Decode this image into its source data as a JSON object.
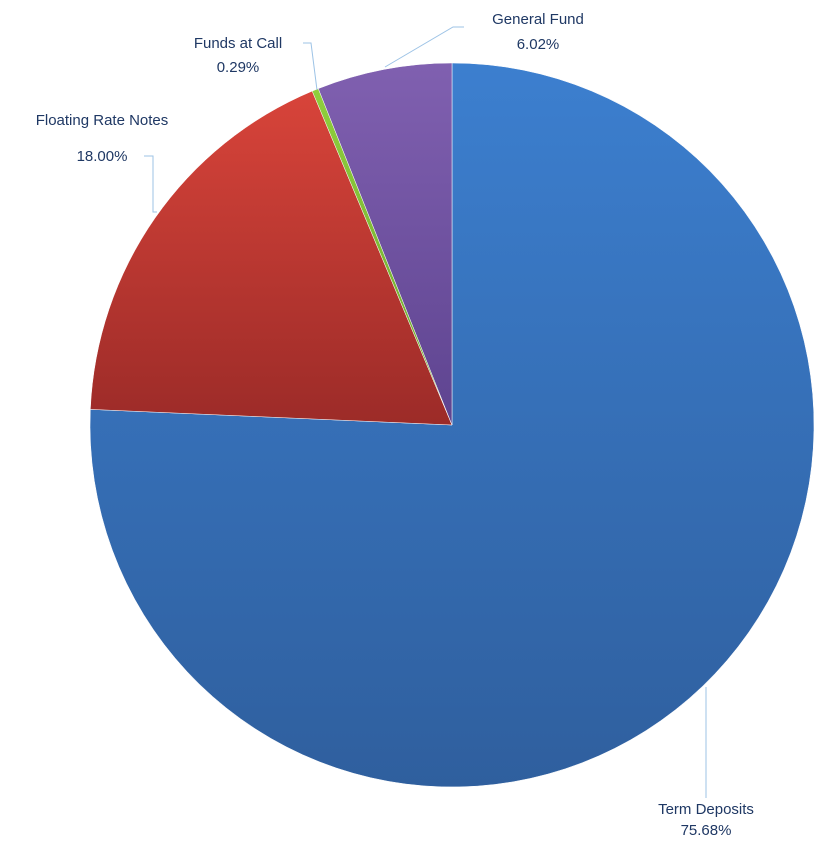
{
  "chart_data": {
    "type": "pie",
    "title": "",
    "start": "12 o'clock, clockwise",
    "slices": [
      {
        "label": "Term Deposits",
        "value": 75.68,
        "value_label": "75.68%",
        "color_top": "#3c7fcf",
        "color_bottom": "#2f5f9e"
      },
      {
        "label": "Floating Rate Notes",
        "value": 18.0,
        "value_label": "18.00%",
        "color_top": "#d8443a",
        "color_bottom": "#9c2b28"
      },
      {
        "label": "Funds at Call",
        "value": 0.29,
        "value_label": "0.29%",
        "color_top": "#8fcf3c",
        "color_bottom": "#6ea531"
      },
      {
        "label": "General Fund",
        "value": 6.02,
        "value_label": "6.02%",
        "color_top": "#8060b0",
        "color_bottom": "#5e4490"
      }
    ]
  },
  "label_color": "#1f3864",
  "leader_color": "#9dc3e6"
}
